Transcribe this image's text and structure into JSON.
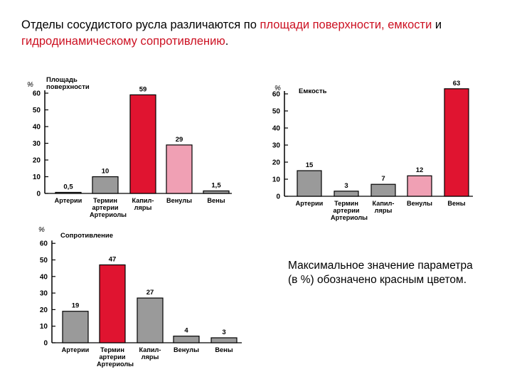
{
  "heading": {
    "part1": "Отделы сосудистого русла различаются по ",
    "part2": "площади поверхности, емкости",
    "part3": " и ",
    "part4": "гидродинамическому сопротивлению",
    "part5": "."
  },
  "note": "Максимальное значение параметра (в %) обозначено красным цветом.",
  "colors": {
    "highlight": "#cc1122",
    "max_bar": "#e01430",
    "artery_bar": "#9a9a9a",
    "vein_bar": "#f0a0b4",
    "heading_accent": "#cc1122"
  },
  "chart_data": [
    {
      "type": "bar",
      "title": [
        "Площадь",
        "поверхности"
      ],
      "unit": "%",
      "ylim": [
        0,
        60
      ],
      "yticks": [
        "0",
        "10",
        "20",
        "30",
        "40",
        "50",
        "60"
      ],
      "categories": [
        [
          "Артерии"
        ],
        [
          "Термин",
          "артерии",
          "Артериолы"
        ],
        [
          "Капил-",
          "ляры"
        ],
        [
          "Венулы"
        ],
        [
          "Вены"
        ]
      ],
      "values": [
        0.5,
        10,
        59,
        29,
        1.5
      ],
      "value_labels": [
        "0,5",
        "10",
        "59",
        "29",
        "1,5"
      ],
      "bar_styles": [
        "gray",
        "gray",
        "red",
        "pink",
        "gray"
      ]
    },
    {
      "type": "bar",
      "title": [
        "Емкость"
      ],
      "unit": "%",
      "ylim": [
        0,
        60
      ],
      "yticks": [
        "0",
        "10",
        "20",
        "30",
        "40",
        "50",
        "60"
      ],
      "categories": [
        [
          "Артерии"
        ],
        [
          "Термин",
          "артерии",
          "Артериолы"
        ],
        [
          "Капил-",
          "ляры"
        ],
        [
          "Венулы"
        ],
        [
          "Вены"
        ]
      ],
      "values": [
        15,
        3,
        7,
        12,
        63
      ],
      "value_labels": [
        "15",
        "3",
        "7",
        "12",
        "63"
      ],
      "bar_styles": [
        "gray",
        "gray",
        "gray",
        "pink",
        "red"
      ]
    },
    {
      "type": "bar",
      "title": [
        "Сопротивление"
      ],
      "unit": "%",
      "ylim": [
        0,
        60
      ],
      "yticks": [
        "0",
        "10",
        "20",
        "30",
        "40",
        "50",
        "60"
      ],
      "categories": [
        [
          "Артерии"
        ],
        [
          "Термин",
          "артерии",
          "Артериолы"
        ],
        [
          "Капил-",
          "ляры"
        ],
        [
          "Венулы"
        ],
        [
          "Вены"
        ]
      ],
      "values": [
        19,
        47,
        27,
        4,
        3
      ],
      "value_labels": [
        "19",
        "47",
        "27",
        "4",
        "3"
      ],
      "bar_styles": [
        "gray",
        "red",
        "gray",
        "gray",
        "gray"
      ]
    }
  ]
}
